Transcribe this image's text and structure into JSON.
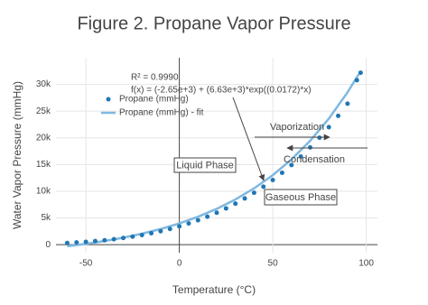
{
  "chart_data": {
    "type": "scatter",
    "title": "Figure 2. Propane Vapor Pressure",
    "x_label": "Temperature (°C)",
    "y_label": "Water Vapor Pressure (mmHg)",
    "xlim": [
      -66,
      106
    ],
    "ylim": [
      -1500,
      35000
    ],
    "xticks": [
      -50,
      0,
      50,
      100
    ],
    "yticks": [
      0,
      {
        "value": 5000,
        "label": "5k"
      },
      {
        "value": 10000,
        "label": "10k"
      },
      {
        "value": 15000,
        "label": "15k"
      },
      {
        "value": 20000,
        "label": "20k"
      },
      {
        "value": 25000,
        "label": "25k"
      },
      {
        "value": 30000,
        "label": "30k"
      }
    ],
    "grid": true,
    "zeroline": true,
    "legend": "top-left",
    "series": [
      {
        "name": "Propane (mmHg)",
        "color": "#1f77b4",
        "mode": "markers",
        "x": [
          -60,
          -55,
          -50,
          -45,
          -40,
          -35,
          -30,
          -25,
          -20,
          -15,
          -10,
          -5,
          0,
          5,
          10,
          15,
          20,
          25,
          30,
          35,
          40,
          45,
          50,
          55,
          60,
          65,
          70,
          75,
          80,
          85,
          90,
          95,
          97
        ],
        "values": [
          320,
          420,
          530,
          670,
          830,
          1020,
          1240,
          1500,
          1790,
          2130,
          2510,
          2940,
          3430,
          3970,
          4570,
          5240,
          5980,
          6790,
          7680,
          8650,
          9710,
          10860,
          12110,
          13460,
          14920,
          16500,
          18200,
          20030,
          22000,
          24120,
          26400,
          30800,
          32200
        ]
      },
      {
        "name": "Propane (mmHg) - fit",
        "color": "#7fb8e0",
        "mode": "lines",
        "x": [
          -60,
          -50,
          -40,
          -30,
          -20,
          -10,
          0,
          10,
          20,
          30,
          40,
          50,
          60,
          70,
          80,
          90,
          96
        ],
        "values": [
          -288,
          156,
          682,
          1308,
          2050,
          2932,
          3980,
          5224,
          6702,
          8457,
          10542,
          13018,
          15958,
          19451,
          23598,
          28525,
          31916
        ]
      }
    ],
    "annotations": [
      "R² = 0.9990",
      "f(x) = (-2.65e+3) + (6.63e+3)*exp((0.0172)*x)",
      "Vaporization",
      "Condensation",
      "Liquid Phase",
      "Gaseous Phase"
    ]
  }
}
